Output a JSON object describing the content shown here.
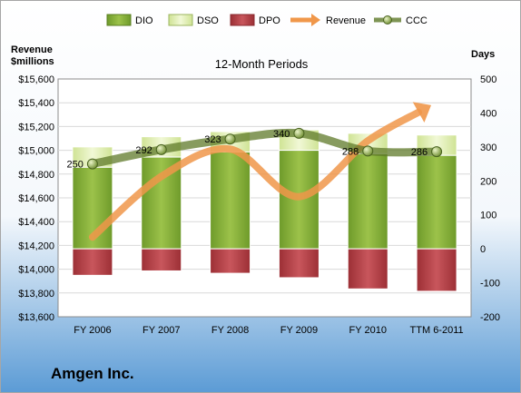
{
  "chart_data": {
    "type": "bar",
    "title": "12-Month Periods",
    "company": "Amgen Inc.",
    "left_axis_label": [
      "Revenue",
      "$millions"
    ],
    "right_axis_label": "Days",
    "categories": [
      "FY 2006",
      "FY 2007",
      "FY 2008",
      "FY 2009",
      "FY 2010",
      "TTM 6-2011"
    ],
    "left_ticks": [
      "$13,600",
      "$13,800",
      "$14,000",
      "$14,200",
      "$14,400",
      "$14,600",
      "$14,800",
      "$15,000",
      "$15,200",
      "$15,400",
      "$15,600"
    ],
    "right_ticks": [
      "-200",
      "-100",
      "0",
      "100",
      "200",
      "300",
      "400",
      "500"
    ],
    "ylim_left": [
      13600,
      15600
    ],
    "ylim_right": [
      -200,
      500
    ],
    "grid": true,
    "legend_position": "top",
    "legend": [
      "DIO",
      "DSO",
      "DPO",
      "Revenue",
      "CCC"
    ],
    "series": [
      {
        "name": "DIO",
        "axis": "right",
        "values": [
          240,
          270,
          285,
          290,
          280,
          275
        ]
      },
      {
        "name": "DSO",
        "axis": "right",
        "values": [
          60,
          60,
          60,
          60,
          60,
          60
        ]
      },
      {
        "name": "DPO",
        "axis": "right",
        "values": [
          -78,
          -65,
          -72,
          -85,
          -118,
          -125
        ]
      },
      {
        "name": "Revenue",
        "axis": "left",
        "values": [
          14270,
          14780,
          15010,
          14610,
          15080,
          15320
        ]
      },
      {
        "name": "CCC",
        "axis": "right",
        "values": [
          250,
          292,
          323,
          340,
          288,
          286
        ]
      }
    ],
    "ccc_labels": [
      "250",
      "292",
      "323",
      "340",
      "288",
      "286"
    ],
    "colors": {
      "DIO": "#8db43d",
      "DSO": "#e4f0b8",
      "DPO": "#b8444a",
      "Revenue": "#f0974a",
      "CCC": "#5f7a2a",
      "plot_bg": "#ffffff",
      "bg_top": "#ffffff",
      "bg_bottom": "#5b9bd5"
    }
  }
}
